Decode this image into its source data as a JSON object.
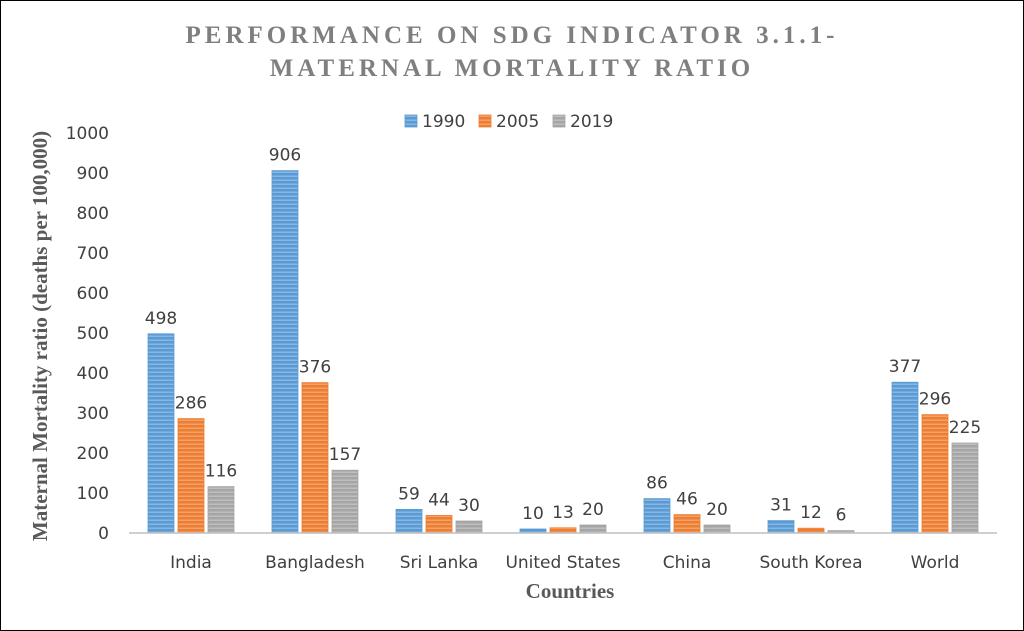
{
  "chart_data": {
    "type": "bar",
    "title_line1": "PERFORMANCE ON SDG INDICATOR 3.1.1-",
    "title_line2": "MATERNAL MORTALITY RATIO",
    "xlabel": "Countries",
    "ylabel": "Maternal Mortality ratio (deaths per 100,000)",
    "categories": [
      "India",
      "Bangladesh",
      "Sri Lanka",
      "United States",
      "China",
      "South Korea",
      "World"
    ],
    "series": [
      {
        "name": "1990",
        "color": "#5b9bd5",
        "values": [
          498,
          906,
          59,
          10,
          86,
          31,
          377
        ]
      },
      {
        "name": "2005",
        "color": "#ed7d31",
        "values": [
          286,
          376,
          44,
          13,
          46,
          12,
          296
        ]
      },
      {
        "name": "2019",
        "color": "#a5a5a5",
        "values": [
          116,
          157,
          30,
          20,
          20,
          6,
          225
        ]
      }
    ],
    "ylim": [
      0,
      1000
    ],
    "yticks": [
      0,
      100,
      200,
      300,
      400,
      500,
      600,
      700,
      800,
      900,
      1000
    ],
    "grid": false,
    "legend_position": "top-center",
    "bar_style": "horizontal-striped"
  }
}
